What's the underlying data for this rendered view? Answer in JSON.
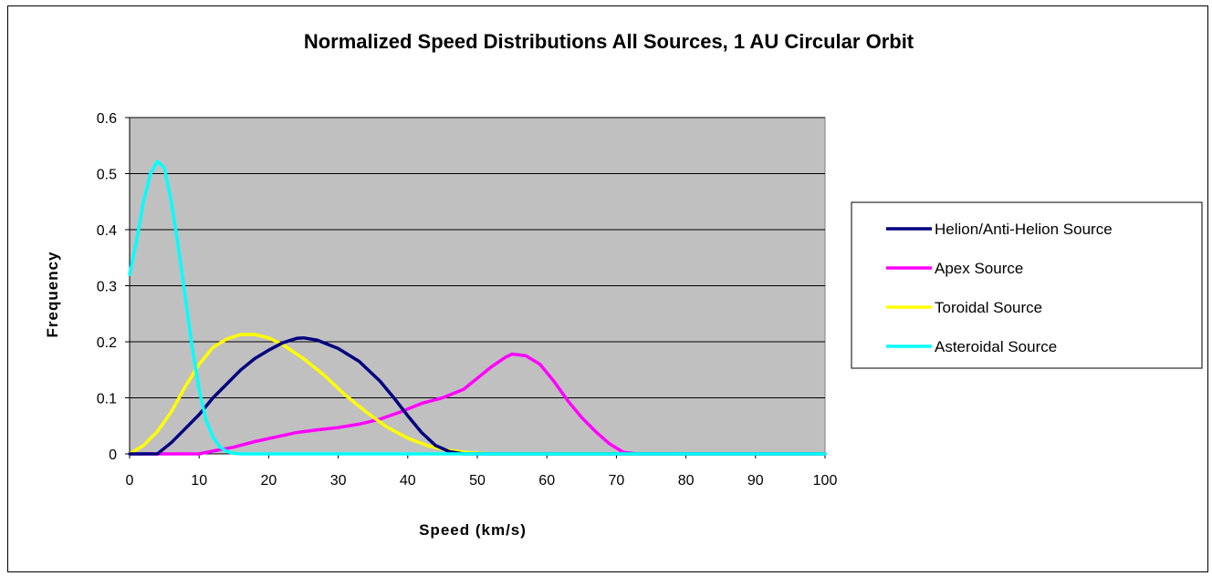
{
  "chart_data": {
    "type": "line",
    "title": "Normalized Speed Distributions All Sources, 1 AU Circular Orbit",
    "xlabel": "Speed (km/s)",
    "ylabel": "Frequency",
    "xlim": [
      0,
      100
    ],
    "ylim": [
      0,
      0.6
    ],
    "x_ticks": [
      "0",
      "10",
      "20",
      "30",
      "40",
      "50",
      "60",
      "70",
      "80",
      "90",
      "100"
    ],
    "y_ticks": [
      "0",
      "0.1",
      "0.2",
      "0.3",
      "0.4",
      "0.5",
      "0.6"
    ],
    "grid": "horizontal",
    "plot_background": "#c0c0c0",
    "legend_position": "right",
    "series": [
      {
        "name": "Helion/Anti-Helion Source",
        "color": "#000080",
        "points": [
          [
            0,
            0
          ],
          [
            4,
            0
          ],
          [
            6,
            0.02
          ],
          [
            8,
            0.045
          ],
          [
            10,
            0.07
          ],
          [
            12,
            0.1
          ],
          [
            14,
            0.125
          ],
          [
            16,
            0.15
          ],
          [
            18,
            0.17
          ],
          [
            20,
            0.185
          ],
          [
            22,
            0.198
          ],
          [
            24,
            0.206
          ],
          [
            25,
            0.207
          ],
          [
            27,
            0.203
          ],
          [
            30,
            0.188
          ],
          [
            33,
            0.165
          ],
          [
            36,
            0.13
          ],
          [
            38,
            0.1
          ],
          [
            40,
            0.068
          ],
          [
            42,
            0.038
          ],
          [
            44,
            0.015
          ],
          [
            46,
            0.004
          ],
          [
            48,
            0
          ],
          [
            100,
            0
          ]
        ]
      },
      {
        "name": "Apex Source",
        "color": "#ff00ff",
        "points": [
          [
            0,
            0
          ],
          [
            10,
            0
          ],
          [
            12,
            0.005
          ],
          [
            15,
            0.012
          ],
          [
            18,
            0.022
          ],
          [
            21,
            0.03
          ],
          [
            24,
            0.038
          ],
          [
            27,
            0.043
          ],
          [
            30,
            0.047
          ],
          [
            33,
            0.053
          ],
          [
            36,
            0.062
          ],
          [
            39,
            0.075
          ],
          [
            42,
            0.09
          ],
          [
            45,
            0.1
          ],
          [
            48,
            0.115
          ],
          [
            50,
            0.135
          ],
          [
            52,
            0.155
          ],
          [
            54,
            0.172
          ],
          [
            55,
            0.178
          ],
          [
            57,
            0.175
          ],
          [
            59,
            0.16
          ],
          [
            61,
            0.13
          ],
          [
            63,
            0.095
          ],
          [
            65,
            0.065
          ],
          [
            67,
            0.04
          ],
          [
            69,
            0.018
          ],
          [
            71,
            0.003
          ],
          [
            73,
            0
          ],
          [
            100,
            0
          ]
        ]
      },
      {
        "name": "Toroidal Source",
        "color": "#ffff00",
        "points": [
          [
            0,
            0
          ],
          [
            2,
            0.015
          ],
          [
            4,
            0.04
          ],
          [
            6,
            0.075
          ],
          [
            8,
            0.12
          ],
          [
            10,
            0.16
          ],
          [
            12,
            0.19
          ],
          [
            14,
            0.205
          ],
          [
            16,
            0.213
          ],
          [
            18,
            0.213
          ],
          [
            20,
            0.207
          ],
          [
            22,
            0.195
          ],
          [
            25,
            0.17
          ],
          [
            28,
            0.14
          ],
          [
            31,
            0.105
          ],
          [
            34,
            0.075
          ],
          [
            37,
            0.048
          ],
          [
            40,
            0.028
          ],
          [
            43,
            0.014
          ],
          [
            46,
            0.006
          ],
          [
            49,
            0.002
          ],
          [
            52,
            0
          ],
          [
            100,
            0
          ]
        ]
      },
      {
        "name": "Asteroidal Source",
        "color": "#00ffff",
        "points": [
          [
            0,
            0.32
          ],
          [
            1,
            0.38
          ],
          [
            2,
            0.45
          ],
          [
            3,
            0.5
          ],
          [
            4,
            0.522
          ],
          [
            5,
            0.51
          ],
          [
            6,
            0.45
          ],
          [
            7,
            0.37
          ],
          [
            8,
            0.28
          ],
          [
            9,
            0.19
          ],
          [
            10,
            0.115
          ],
          [
            11,
            0.06
          ],
          [
            12,
            0.03
          ],
          [
            13,
            0.012
          ],
          [
            14,
            0.004
          ],
          [
            15,
            0.001
          ],
          [
            16,
            0
          ],
          [
            100,
            0
          ]
        ]
      }
    ]
  }
}
